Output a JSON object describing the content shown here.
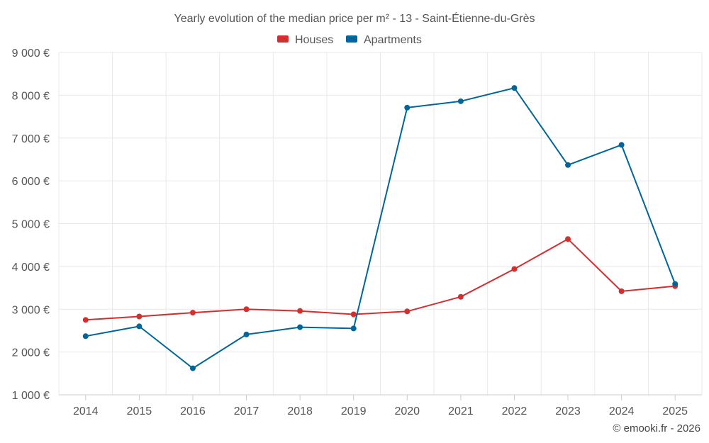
{
  "colors": {
    "houses": "#d32f2f",
    "apartments": "#00669a"
  },
  "chart_data": {
    "type": "line",
    "title": "Yearly evolution of the median price per m² - 13 - Saint-Étienne-du-Grès",
    "xlabel": "",
    "ylabel": "",
    "categories": [
      "2014",
      "2015",
      "2016",
      "2017",
      "2018",
      "2019",
      "2020",
      "2021",
      "2022",
      "2023",
      "2024",
      "2025"
    ],
    "ylim": [
      1000,
      9000
    ],
    "yticks": [
      1000,
      2000,
      3000,
      4000,
      5000,
      6000,
      7000,
      8000,
      9000
    ],
    "ytick_labels": [
      "1 000 €",
      "2 000 €",
      "3 000 €",
      "4 000 €",
      "5 000 €",
      "6 000 €",
      "7 000 €",
      "8 000 €",
      "9 000 €"
    ],
    "grid": true,
    "legend_position": "top-center",
    "series": [
      {
        "name": "Houses",
        "color": "#d32f2f",
        "values": [
          2750,
          2830,
          2920,
          3000,
          2960,
          2880,
          2950,
          3290,
          3940,
          4640,
          3420,
          3540
        ]
      },
      {
        "name": "Apartments",
        "color": "#00669a",
        "values": [
          2370,
          2600,
          1620,
          2410,
          2580,
          2550,
          7710,
          7860,
          8170,
          6370,
          6840,
          3590
        ]
      }
    ]
  },
  "credit": "© emooki.fr - 2026"
}
